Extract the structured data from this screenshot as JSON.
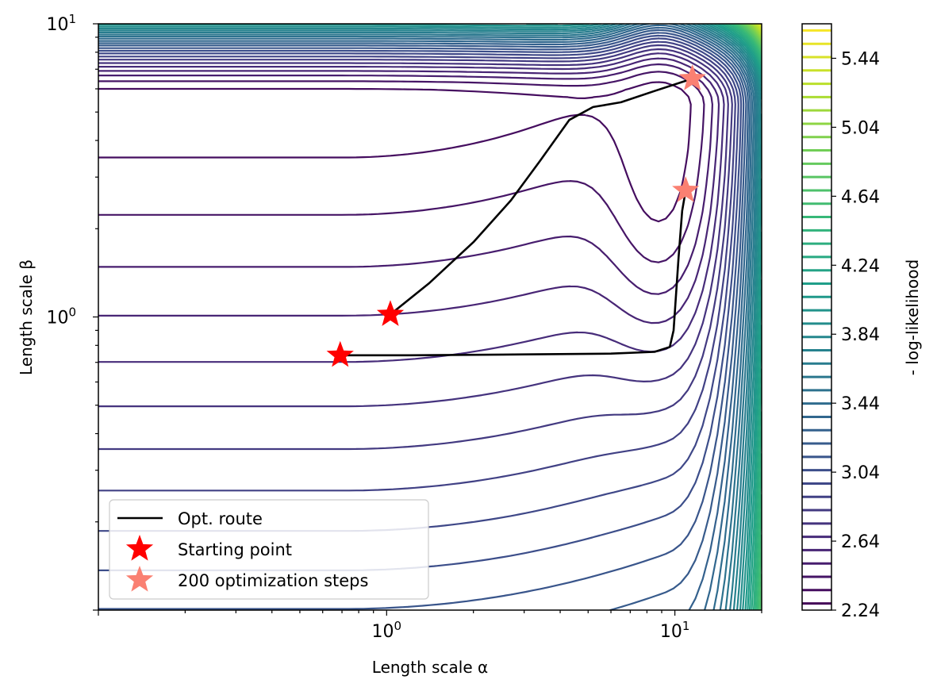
{
  "chart_data": {
    "type": "contour",
    "xlabel": "Length scale α",
    "ylabel": "Length scale β",
    "xscale": "log",
    "yscale": "log",
    "xlim": [
      0.1,
      20
    ],
    "ylim": [
      0.1,
      10
    ],
    "x_ticks": [
      {
        "base": "10",
        "exp": "0",
        "value": 1
      },
      {
        "base": "10",
        "exp": "1",
        "value": 10
      }
    ],
    "y_ticks": [
      {
        "base": "10",
        "exp": "0",
        "value": 1
      },
      {
        "base": "10",
        "exp": "1",
        "value": 10
      }
    ],
    "grid": false,
    "colormap": "viridis",
    "colorbar": {
      "label": "- log-likelihood",
      "min": 2.24,
      "max": 5.64,
      "levels": 44,
      "tick_labels": [
        "2.24",
        "2.64",
        "3.04",
        "3.44",
        "3.84",
        "4.24",
        "4.64",
        "5.04",
        "5.44"
      ]
    },
    "legend": {
      "placement": "lower-left",
      "entries": [
        {
          "label": "Opt. route",
          "marker": "line",
          "color": "#000000"
        },
        {
          "label": "Starting point",
          "marker": "star",
          "color": "#ff0000"
        },
        {
          "label": "200 optimization steps",
          "marker": "star",
          "color": "#fa8072"
        }
      ]
    },
    "routes": [
      {
        "points": [
          [
            0.69,
            0.74
          ],
          [
            1.2,
            0.74
          ],
          [
            3,
            0.745
          ],
          [
            6,
            0.75
          ],
          [
            8.5,
            0.76
          ],
          [
            9.6,
            0.79
          ],
          [
            9.9,
            0.9
          ],
          [
            10.3,
            1.6
          ],
          [
            10.6,
            2.3
          ],
          [
            10.9,
            2.7
          ]
        ]
      },
      {
        "points": [
          [
            1.03,
            1.02
          ],
          [
            1.4,
            1.3
          ],
          [
            2,
            1.8
          ],
          [
            2.7,
            2.5
          ],
          [
            3.4,
            3.4
          ],
          [
            4.3,
            4.7
          ],
          [
            5.2,
            5.2
          ],
          [
            6.5,
            5.4
          ],
          [
            8.5,
            5.9
          ],
          [
            11.5,
            6.5
          ]
        ]
      }
    ],
    "start_points": [
      [
        0.69,
        0.74
      ],
      [
        1.03,
        1.02
      ]
    ],
    "end_points": [
      [
        10.9,
        2.7
      ],
      [
        11.5,
        6.5
      ]
    ]
  }
}
